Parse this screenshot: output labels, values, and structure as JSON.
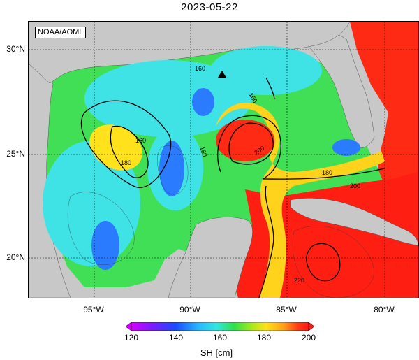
{
  "title": "2023-05-22",
  "watermark": "NOAA/AOML",
  "lat_labels": [
    "30°N",
    "25°N",
    "20°N"
  ],
  "lon_labels": [
    "95°W",
    "90°W",
    "85°W",
    "80°W"
  ],
  "contour_labels": [
    "160",
    "160",
    "180",
    "160",
    "180",
    "200",
    "180",
    "180",
    "200",
    "220"
  ],
  "colorbar": {
    "ticks": [
      "120",
      "140",
      "160",
      "180",
      "200"
    ],
    "label": "SH [cm]",
    "colors": [
      "#d400ff",
      "#7a1cff",
      "#1a4bff",
      "#29b8ff",
      "#33e6e0",
      "#2ee04a",
      "#a8e81c",
      "#ffe11a",
      "#ff9e1a",
      "#ff3b14",
      "#ff1a1a"
    ]
  },
  "colors": {
    "land": "#c8c8c8",
    "cyan": "#3fe3e6",
    "green": "#3fe04f",
    "yellow": "#ffe21c",
    "orange": "#ff9a1e",
    "red": "#ff1e12",
    "blue": "#2b7bff"
  },
  "marker": "triangle"
}
